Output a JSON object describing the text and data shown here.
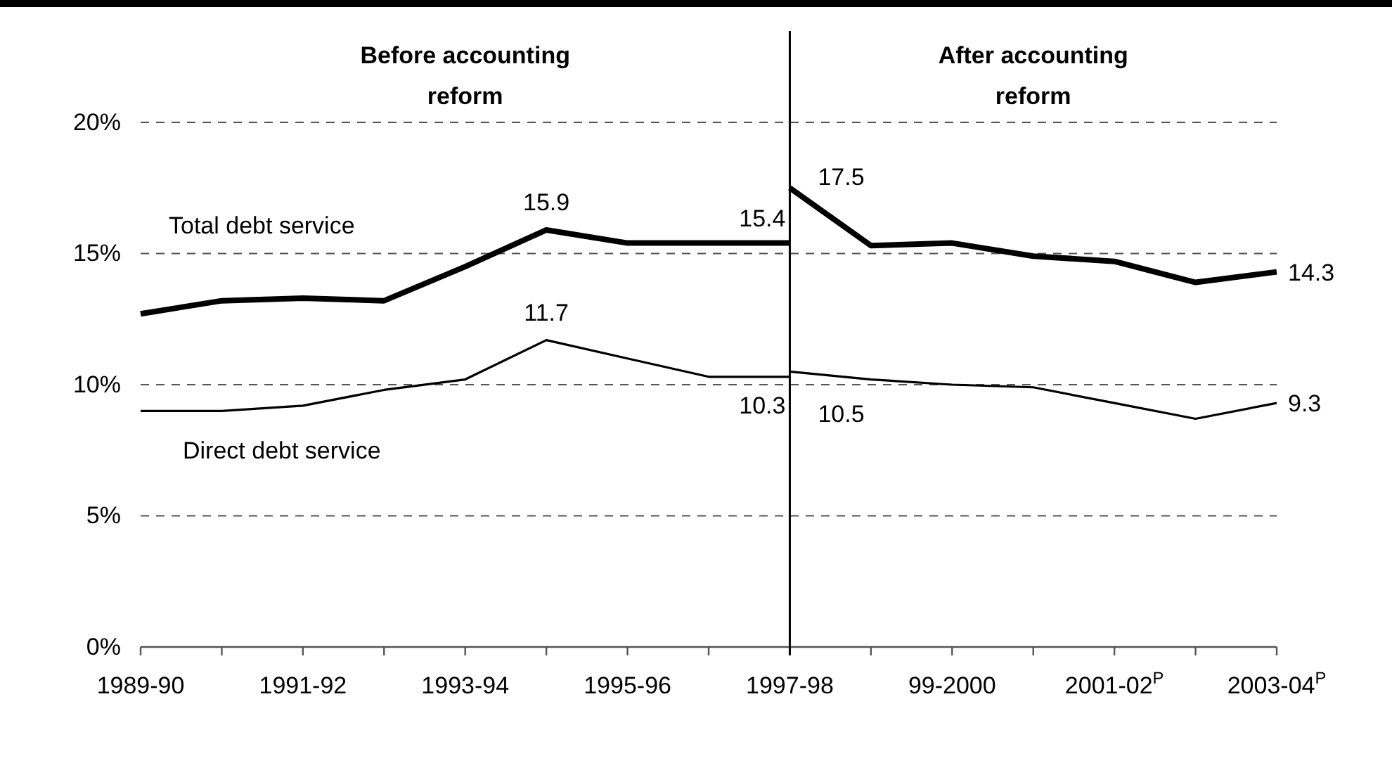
{
  "chart_data": {
    "type": "line",
    "categories": [
      "1989-90",
      null,
      "1991-92",
      null,
      "1993-94",
      null,
      "1995-96",
      null,
      "1997-98",
      null,
      "99-2000",
      null,
      "2001-02$^{P}$",
      null,
      "2003-04$^{P}$"
    ],
    "series": [
      {
        "name": "Total debt service",
        "color": "#000000",
        "values": [
          12.7,
          13.2,
          13.3,
          13.2,
          14.5,
          15.9,
          15.4,
          15.4,
          15.4,
          null,
          null,
          null,
          null,
          null,
          null
        ],
        "value_labels": [
          null,
          null,
          null,
          null,
          null,
          "15.9",
          null,
          null,
          "15.4",
          null,
          null,
          null,
          null,
          null,
          null
        ]
      },
      {
        "color": "#000000",
        "values": [
          null,
          null,
          null,
          null,
          null,
          null,
          null,
          null,
          17.5,
          15.3,
          15.4,
          14.9,
          14.7,
          13.9,
          14.3
        ],
        "value_labels": [
          null,
          null,
          null,
          null,
          null,
          null,
          null,
          null,
          "17.5",
          null,
          null,
          null,
          null,
          null,
          "14.3"
        ]
      },
      {
        "name": "Direct debt service",
        "color": "#000000",
        "values": [
          9.0,
          9.0,
          9.2,
          9.8,
          10.2,
          11.7,
          11.0,
          10.3,
          10.3,
          null,
          null,
          null,
          null,
          null,
          null
        ],
        "value_labels": [
          null,
          null,
          null,
          null,
          null,
          "11.7",
          null,
          null,
          "10.3",
          null,
          null,
          null,
          null,
          null,
          null
        ]
      },
      {
        "color": "#000000",
        "values": [
          null,
          null,
          null,
          null,
          null,
          null,
          null,
          null,
          10.5,
          10.2,
          10.0,
          9.9,
          9.3,
          8.7,
          9.3
        ],
        "value_labels": [
          null,
          null,
          null,
          null,
          null,
          null,
          null,
          null,
          "10.5",
          null,
          null,
          null,
          null,
          null,
          "9.3"
        ]
      }
    ],
    "ylim": [
      0,
      20
    ],
    "yticks": [
      {
        "value": 0,
        "label": "0%"
      },
      {
        "value": 5,
        "label": "5%"
      },
      {
        "value": 10,
        "label": "10%"
      },
      {
        "value": 15,
        "label": "15%"
      },
      {
        "value": 20,
        "label": "20%"
      }
    ],
    "grid": "y",
    "legend": false,
    "marker": "none",
    "line_style": "solid",
    "ref_lines": [
      {
        "axis": "x",
        "value": "1997-98",
        "color": "#000000"
      }
    ],
    "annotations": [
      "Before accounting reform",
      "After accounting reform"
    ]
  }
}
